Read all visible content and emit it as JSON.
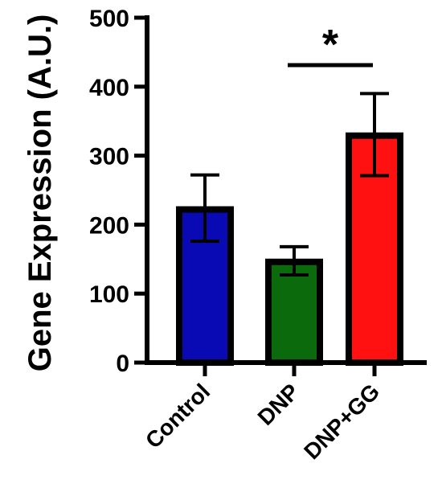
{
  "chart_data": {
    "type": "bar",
    "title": "",
    "xlabel": "",
    "ylabel": "Gene Expression (A.U.)",
    "categories": [
      "Control",
      "DNP",
      "DNP+GG"
    ],
    "values": [
      222,
      146,
      329
    ],
    "error_upper": [
      272,
      168,
      390
    ],
    "error_lower": [
      176,
      127,
      271
    ],
    "colors": [
      "#0a0ab4",
      "#0b6a0b",
      "#ff1111"
    ],
    "ylim": [
      0,
      500
    ],
    "yticks": [
      0,
      100,
      200,
      300,
      400,
      500
    ],
    "grid": false,
    "significance": {
      "from": "DNP",
      "to": "DNP+GG",
      "label": "*"
    }
  }
}
